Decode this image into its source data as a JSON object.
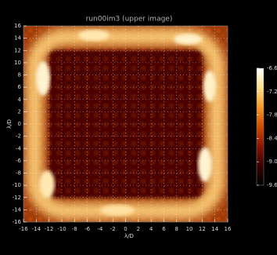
{
  "chart_data": {
    "type": "image",
    "title": "run00im3 (upper image)",
    "x_label": "λ/D",
    "y_label": "λ/D",
    "xlim": [
      -16,
      16
    ],
    "ylim": [
      -16,
      16
    ],
    "xticks": [
      -16,
      -14,
      -12,
      -10,
      -8,
      -6,
      -4,
      -2,
      0,
      2,
      4,
      6,
      8,
      10,
      12,
      14,
      16
    ],
    "yticks": [
      -16,
      -14,
      -12,
      -10,
      -8,
      -6,
      -4,
      -2,
      0,
      2,
      4,
      6,
      8,
      10,
      12,
      14,
      16
    ],
    "grid": true,
    "colorbar": {
      "clim": [
        -9.6,
        -6.6
      ],
      "ticks": [
        -6.6,
        -7.2,
        -7.8,
        -8.4,
        {
          "value": -9,
          "label": "-9.0"
        },
        -9.6
      ],
      "colors": [
        "#000000",
        "#3a0000",
        "#8a1400",
        "#d24a00",
        "#f59a2a",
        "#ffe08a",
        "#ffffff"
      ]
    }
  }
}
